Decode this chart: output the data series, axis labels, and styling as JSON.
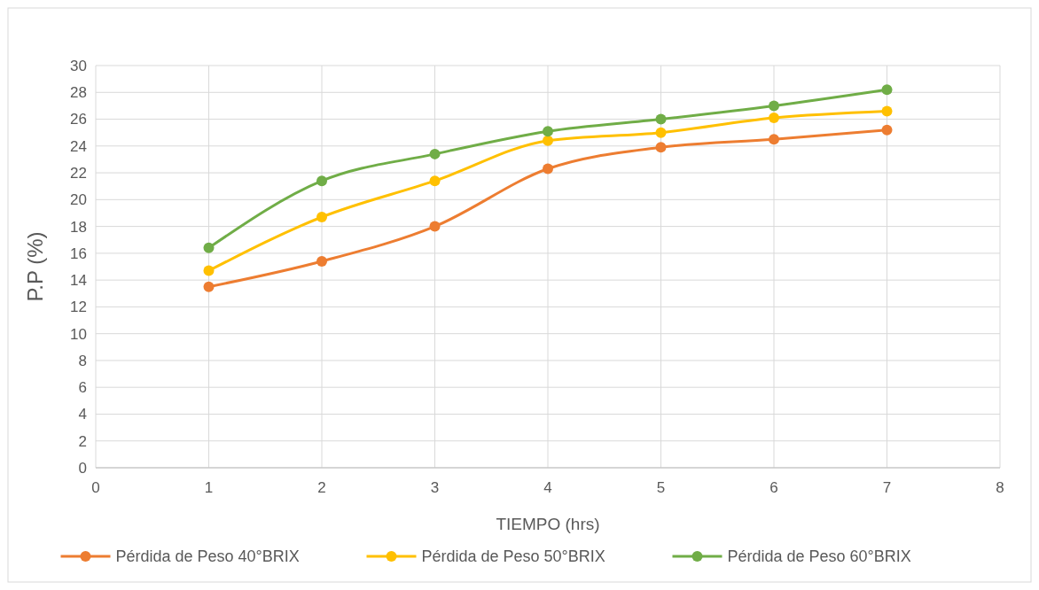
{
  "chart_data": {
    "type": "line",
    "xlabel": "TIEMPO (hrs)",
    "ylabel": "P.P (%)",
    "x": [
      1,
      2,
      3,
      4,
      5,
      6,
      7
    ],
    "series": [
      {
        "name": "Pérdida de Peso 40°BRIX",
        "color": "#ed7d31",
        "values": [
          13.5,
          15.4,
          18.0,
          22.3,
          23.9,
          24.5,
          25.2
        ]
      },
      {
        "name": "Pérdida de Peso 50°BRIX",
        "color": "#ffc000",
        "values": [
          14.7,
          18.7,
          21.4,
          24.4,
          25.0,
          26.1,
          26.6
        ]
      },
      {
        "name": "Pérdida de Peso 60°BRIX",
        "color": "#70ad47",
        "values": [
          16.4,
          21.4,
          23.4,
          25.1,
          26.0,
          27.0,
          28.2
        ]
      }
    ],
    "xlim": [
      0,
      8
    ],
    "xticks": [
      0,
      1,
      2,
      3,
      4,
      5,
      6,
      7,
      8
    ],
    "ylim": [
      0,
      30
    ],
    "yticks": [
      0,
      2,
      4,
      6,
      8,
      10,
      12,
      14,
      16,
      18,
      20,
      22,
      24,
      26,
      28,
      30
    ],
    "grid": true,
    "legend": "bottom",
    "marker": "circle",
    "line_style": "solid"
  }
}
